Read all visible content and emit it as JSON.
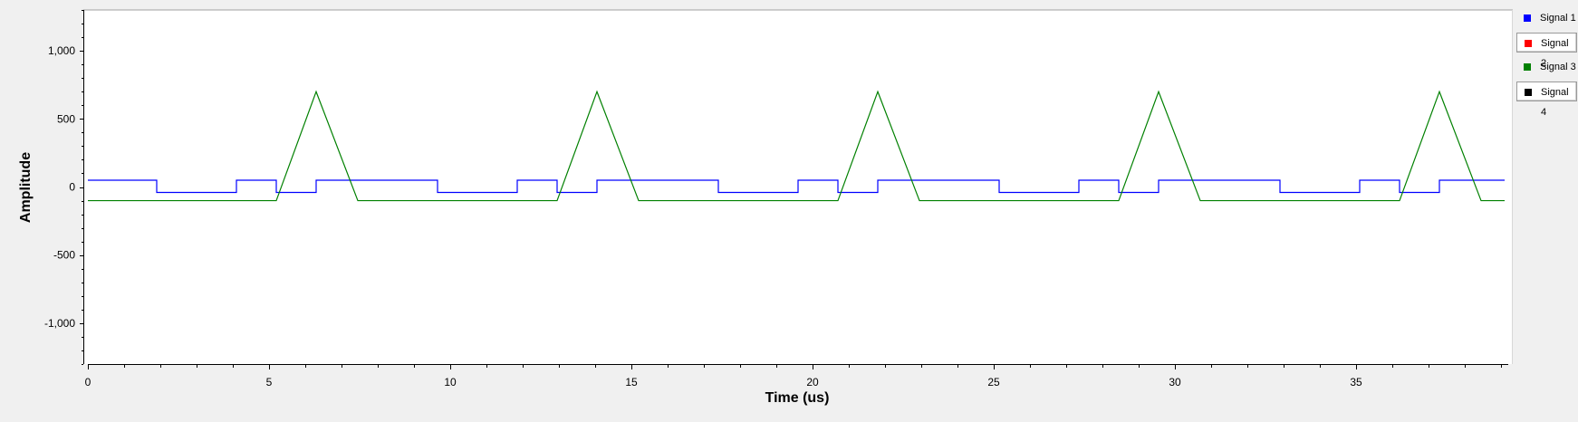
{
  "chart_data": {
    "type": "line",
    "xlabel": "Time (us)",
    "ylabel": "Amplitude",
    "xlim": [
      0,
      39.2
    ],
    "ylim": [
      -1300,
      1300
    ],
    "x_ticks": [
      0,
      5,
      10,
      15,
      20,
      25,
      30,
      35
    ],
    "x_tick_labels": [
      "0",
      "5",
      "10",
      "15",
      "20",
      "25",
      "30",
      "35"
    ],
    "y_ticks": [
      1000,
      500,
      0,
      -500,
      -1000
    ],
    "y_tick_labels": [
      "1,000",
      "500",
      "0",
      "-500",
      "-1,000"
    ],
    "grid": false,
    "legend_position": "right",
    "background": "#ffffff",
    "series": [
      {
        "name": "Signal 1",
        "color": "#0000ff",
        "visible": true,
        "points": [
          [
            0,
            50
          ],
          [
            1.9,
            50
          ],
          [
            1.9,
            -40
          ],
          [
            4.1,
            -40
          ],
          [
            4.1,
            50
          ],
          [
            5.2,
            50
          ],
          [
            5.2,
            -40
          ],
          [
            6.3,
            -40
          ],
          [
            6.3,
            50
          ],
          [
            9.65,
            50
          ],
          [
            9.65,
            -40
          ],
          [
            11.85,
            -40
          ],
          [
            11.85,
            50
          ],
          [
            12.95,
            50
          ],
          [
            12.95,
            -40
          ],
          [
            14.05,
            -40
          ],
          [
            14.05,
            50
          ],
          [
            17.4,
            50
          ],
          [
            17.4,
            -40
          ],
          [
            19.6,
            -40
          ],
          [
            19.6,
            50
          ],
          [
            20.7,
            50
          ],
          [
            20.7,
            -40
          ],
          [
            21.8,
            -40
          ],
          [
            21.8,
            50
          ],
          [
            25.15,
            50
          ],
          [
            25.15,
            -40
          ],
          [
            27.35,
            -40
          ],
          [
            27.35,
            50
          ],
          [
            28.45,
            50
          ],
          [
            28.45,
            -40
          ],
          [
            29.55,
            -40
          ],
          [
            29.55,
            50
          ],
          [
            32.9,
            50
          ],
          [
            32.9,
            -40
          ],
          [
            35.1,
            -40
          ],
          [
            35.1,
            50
          ],
          [
            36.2,
            50
          ],
          [
            36.2,
            -40
          ],
          [
            37.3,
            -40
          ],
          [
            37.3,
            50
          ],
          [
            39.1,
            50
          ]
        ]
      },
      {
        "name": "Signal 2",
        "color": "#ff0000",
        "visible": false,
        "points": []
      },
      {
        "name": "Signal 3",
        "color": "#008000",
        "visible": true,
        "points": [
          [
            0,
            -100
          ],
          [
            5.2,
            -100
          ],
          [
            6.3,
            700
          ],
          [
            7.45,
            -100
          ],
          [
            12.95,
            -100
          ],
          [
            14.05,
            700
          ],
          [
            15.2,
            -100
          ],
          [
            20.7,
            -100
          ],
          [
            21.8,
            700
          ],
          [
            22.95,
            -100
          ],
          [
            28.45,
            -100
          ],
          [
            29.55,
            700
          ],
          [
            30.7,
            -100
          ],
          [
            36.2,
            -100
          ],
          [
            37.3,
            700
          ],
          [
            38.45,
            -100
          ],
          [
            39.1,
            -100
          ]
        ]
      },
      {
        "name": "Signal 4",
        "color": "#000000",
        "visible": false,
        "points": []
      }
    ]
  }
}
